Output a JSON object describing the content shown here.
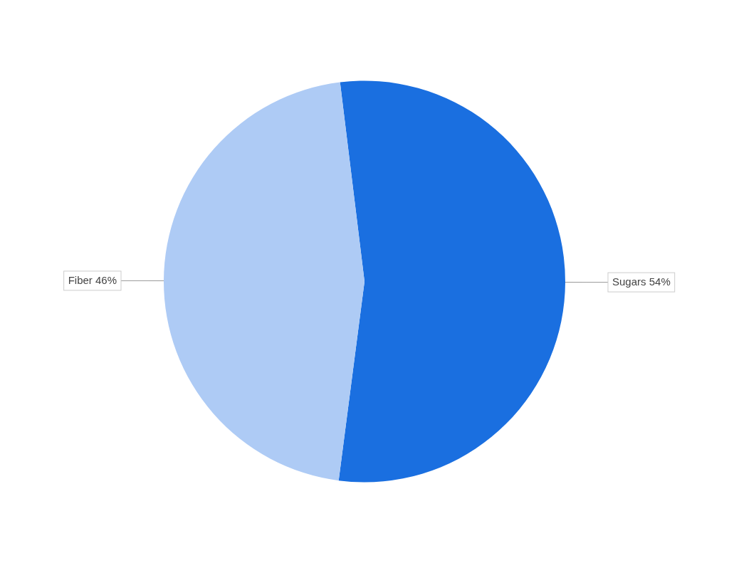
{
  "chart_data": {
    "type": "pie",
    "categories": [
      "Sugars 54%",
      "Fiber 46%"
    ],
    "values": [
      54,
      46
    ],
    "colors": [
      "#1A6FE0",
      "#AECBF5"
    ]
  }
}
